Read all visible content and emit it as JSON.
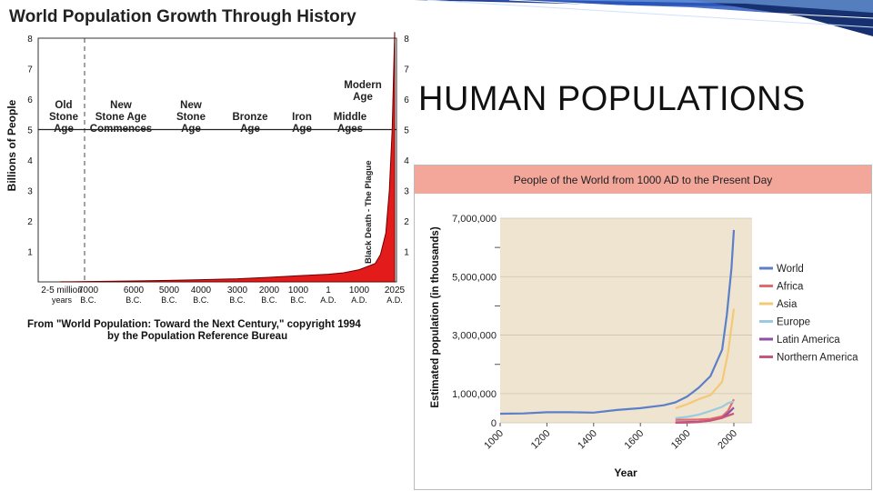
{
  "slide": {
    "title": "HUMAN POPULATIONS"
  },
  "chart_data": [
    {
      "type": "area",
      "title": "World Population Growth Through History",
      "ylabel": "Billions of People",
      "ylim": [
        0,
        8
      ],
      "yticks": [
        "1",
        "2",
        "3",
        "4",
        "5",
        "6",
        "7",
        "8"
      ],
      "x_ticks": [
        {
          "l1": "2-5 million",
          "l2": "years"
        },
        {
          "l1": "7000",
          "l2": "B.C."
        },
        {
          "l1": "6000",
          "l2": "B.C."
        },
        {
          "l1": "5000",
          "l2": "B.C."
        },
        {
          "l1": "4000",
          "l2": "B.C."
        },
        {
          "l1": "3000",
          "l2": "B.C."
        },
        {
          "l1": "2000",
          "l2": "B.C."
        },
        {
          "l1": "1000",
          "l2": "B.C."
        },
        {
          "l1": "1",
          "l2": "A.D."
        },
        {
          "l1": "1000",
          "l2": "A.D."
        },
        {
          "l1": "2025",
          "l2": "A.D."
        }
      ],
      "eras": [
        {
          "lines": [
            "Old",
            "Stone",
            "Age"
          ]
        },
        {
          "lines": [
            "New",
            "Stone Age",
            "Commences"
          ]
        },
        {
          "lines": [
            "New",
            "Stone",
            "Age"
          ]
        },
        {
          "lines": [
            "Bronze",
            "Age"
          ]
        },
        {
          "lines": [
            "Iron",
            "Age"
          ]
        },
        {
          "lines": [
            "Middle",
            "Ages"
          ]
        },
        {
          "lines": [
            "Modern",
            "Age"
          ]
        }
      ],
      "annotation": "Black Death - The Plague",
      "source": [
        "From \"World Population: Toward the Next Century,\" copyright 1994",
        "by the Population Reference Bureau"
      ],
      "values": [
        0.005,
        0.005,
        0.01,
        0.03,
        0.05,
        0.07,
        0.1,
        0.15,
        0.2,
        0.25,
        0.3,
        0.4,
        0.6,
        0.9,
        1.6,
        3,
        5,
        8.2
      ],
      "x_pos": [
        0,
        0.3,
        1,
        2,
        3,
        4,
        5,
        6,
        7,
        8,
        8.5,
        9,
        9.45,
        9.6,
        9.75,
        9.85,
        9.93,
        10
      ]
    },
    {
      "type": "line",
      "title": "People of the World from 1000 AD to the Present Day",
      "xlabel": "Year",
      "ylabel": "Estimated population (in thousands)",
      "xlim": [
        1000,
        2000
      ],
      "ylim": [
        0,
        7000000
      ],
      "xticks": [
        "1000",
        "1200",
        "1400",
        "1600",
        "1800",
        "2000"
      ],
      "yticks": [
        "0",
        "1,000,000",
        "3,000,000",
        "5,000,000",
        "7,000,000"
      ],
      "series": [
        {
          "name": "World",
          "color": "#5b7fc8",
          "x": [
            1000,
            1100,
            1200,
            1300,
            1400,
            1500,
            1600,
            1700,
            1750,
            1800,
            1850,
            1900,
            1950,
            1970,
            1990,
            2000
          ],
          "values": [
            310000,
            320000,
            360000,
            360000,
            350000,
            438000,
            500000,
            600000,
            700000,
            900000,
            1200000,
            1600000,
            2500000,
            3700000,
            5300000,
            6600000
          ]
        },
        {
          "name": "Africa",
          "color": "#e06c6c",
          "x": [
            1750,
            1800,
            1850,
            1900,
            1950,
            1975,
            2000
          ],
          "values": [
            106000,
            107000,
            111000,
            133000,
            221000,
            406000,
            800000
          ]
        },
        {
          "name": "Asia",
          "color": "#f4c877",
          "x": [
            1750,
            1800,
            1850,
            1900,
            1950,
            1975,
            2000
          ],
          "values": [
            502000,
            635000,
            809000,
            947000,
            1402000,
            2400000,
            3900000
          ]
        },
        {
          "name": "Europe",
          "color": "#9ccbe0",
          "x": [
            1750,
            1800,
            1850,
            1900,
            1950,
            1975,
            2000
          ],
          "values": [
            163000,
            203000,
            276000,
            408000,
            547000,
            676000,
            729000
          ]
        },
        {
          "name": "Latin America",
          "color": "#8e4fa8",
          "x": [
            1750,
            1800,
            1850,
            1900,
            1950,
            1975,
            2000
          ],
          "values": [
            16000,
            24000,
            38000,
            74000,
            167000,
            322000,
            520000
          ]
        },
        {
          "name": "Northern America",
          "color": "#c9567a",
          "x": [
            1750,
            1800,
            1850,
            1900,
            1950,
            1975,
            2000
          ],
          "values": [
            2000,
            7000,
            26000,
            82000,
            172000,
            243000,
            316000
          ]
        }
      ]
    }
  ]
}
